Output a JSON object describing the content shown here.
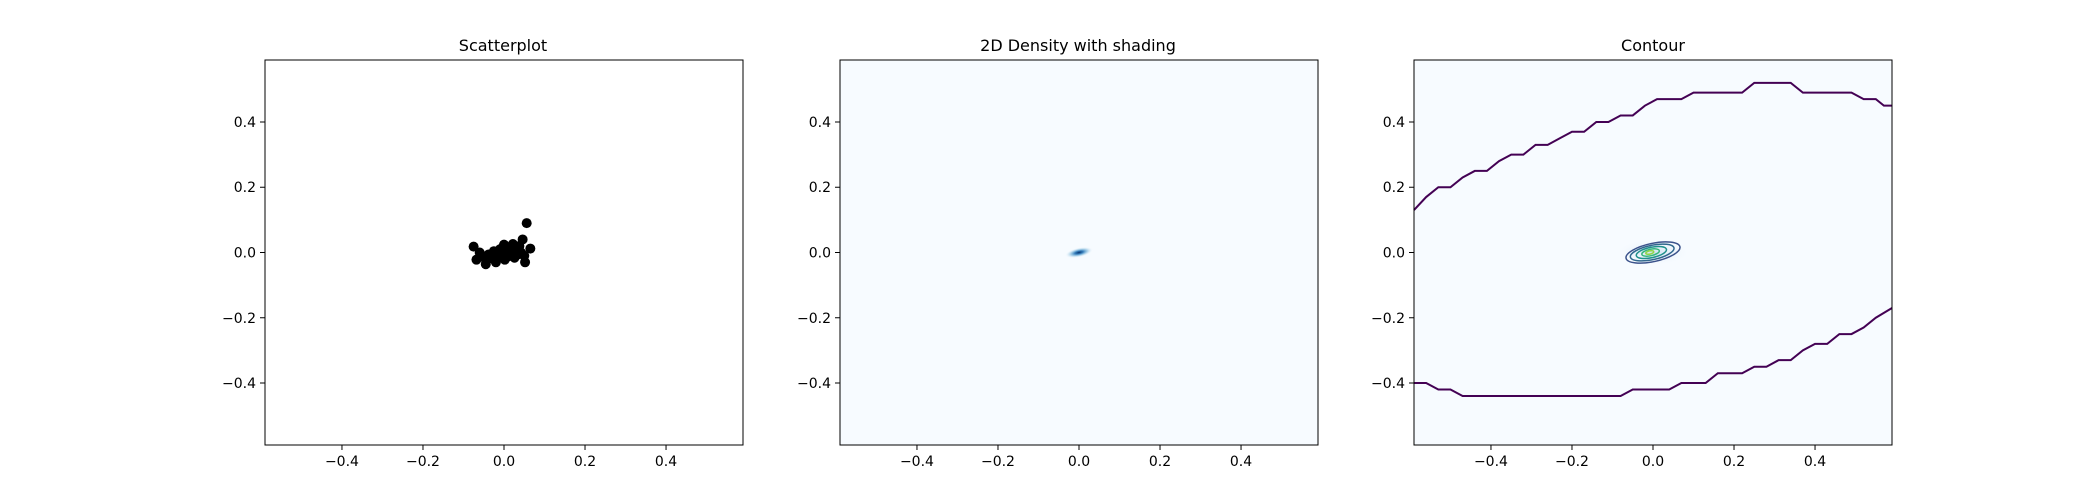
{
  "chart_data": [
    {
      "type": "scatter",
      "title": "Scatterplot",
      "xlabel": "",
      "ylabel": "",
      "xlim": [
        -0.59,
        0.59
      ],
      "ylim": [
        -0.59,
        0.59
      ],
      "xticks": [
        -0.4,
        -0.2,
        0.0,
        0.2,
        0.4
      ],
      "yticks": [
        -0.4,
        -0.2,
        0.0,
        0.2,
        0.4
      ],
      "tick_labels_x": [
        "−0.4",
        "−0.2",
        "0.0",
        "0.2",
        "0.4"
      ],
      "tick_labels_y": [
        "0.4",
        "0.2",
        "0.0",
        "−0.2",
        "−0.4"
      ],
      "grid": false,
      "marker_color": "#000000",
      "points": [
        {
          "x": -0.075,
          "y": 0.018
        },
        {
          "x": -0.068,
          "y": -0.022
        },
        {
          "x": -0.052,
          "y": -0.014
        },
        {
          "x": -0.045,
          "y": -0.036
        },
        {
          "x": -0.038,
          "y": -0.006
        },
        {
          "x": -0.03,
          "y": -0.018
        },
        {
          "x": -0.025,
          "y": 0.004
        },
        {
          "x": -0.02,
          "y": -0.03
        },
        {
          "x": -0.015,
          "y": -0.01
        },
        {
          "x": -0.01,
          "y": 0.01
        },
        {
          "x": -0.005,
          "y": -0.004
        },
        {
          "x": -0.002,
          "y": 0.018
        },
        {
          "x": 0.002,
          "y": -0.022
        },
        {
          "x": 0.006,
          "y": 0.002
        },
        {
          "x": 0.01,
          "y": -0.012
        },
        {
          "x": 0.014,
          "y": 0.012
        },
        {
          "x": 0.018,
          "y": -0.004
        },
        {
          "x": 0.022,
          "y": 0.026
        },
        {
          "x": 0.026,
          "y": -0.016
        },
        {
          "x": 0.03,
          "y": 0.006
        },
        {
          "x": 0.034,
          "y": -0.006
        },
        {
          "x": 0.038,
          "y": 0.02
        },
        {
          "x": 0.042,
          "y": 0.0
        },
        {
          "x": 0.046,
          "y": 0.04
        },
        {
          "x": 0.05,
          "y": -0.01
        },
        {
          "x": 0.052,
          "y": -0.03
        },
        {
          "x": 0.056,
          "y": 0.09
        },
        {
          "x": 0.065,
          "y": 0.012
        },
        {
          "x": -0.06,
          "y": 0.0
        },
        {
          "x": 0.0,
          "y": 0.024
        }
      ]
    },
    {
      "type": "heatmap",
      "title": "2D Density with shading",
      "xlabel": "",
      "ylabel": "",
      "xlim": [
        -0.59,
        0.59
      ],
      "ylim": [
        -0.59,
        0.59
      ],
      "xticks": [
        -0.4,
        -0.2,
        0.0,
        0.2,
        0.4
      ],
      "yticks": [
        -0.4,
        -0.2,
        0.0,
        0.2,
        0.4
      ],
      "tick_labels_x": [
        "−0.4",
        "−0.2",
        "0.0",
        "0.2",
        "0.4"
      ],
      "tick_labels_y": [
        "0.4",
        "0.2",
        "0.0",
        "−0.2",
        "−0.4"
      ],
      "grid": false,
      "colormap": "Blues",
      "background_color": "#f7fbff",
      "peak_color": "#08306b",
      "density_center": {
        "x": 0.0,
        "y": 0.0
      },
      "density_spread": {
        "x": 0.035,
        "y": 0.015
      }
    },
    {
      "type": "contour",
      "title": "Contour",
      "xlabel": "",
      "ylabel": "",
      "xlim": [
        -0.59,
        0.59
      ],
      "ylim": [
        -0.59,
        0.59
      ],
      "xticks": [
        -0.4,
        -0.2,
        0.0,
        0.2,
        0.4
      ],
      "yticks": [
        -0.4,
        -0.2,
        0.0,
        0.2,
        0.4
      ],
      "tick_labels_x": [
        "−0.4",
        "−0.2",
        "0.0",
        "0.2",
        "0.4"
      ],
      "tick_labels_y": [
        "0.4",
        "0.2",
        "0.0",
        "−0.2",
        "−0.4"
      ],
      "grid": false,
      "colormap": "viridis",
      "background_color": "#f7fbff",
      "outer_contour_color": "#440154",
      "outer_contour_upper": [
        [
          -0.59,
          0.13
        ],
        [
          -0.56,
          0.17
        ],
        [
          -0.53,
          0.2
        ],
        [
          -0.5,
          0.2
        ],
        [
          -0.47,
          0.23
        ],
        [
          -0.44,
          0.25
        ],
        [
          -0.41,
          0.25
        ],
        [
          -0.38,
          0.28
        ],
        [
          -0.35,
          0.3
        ],
        [
          -0.32,
          0.3
        ],
        [
          -0.29,
          0.33
        ],
        [
          -0.26,
          0.33
        ],
        [
          -0.23,
          0.35
        ],
        [
          -0.2,
          0.37
        ],
        [
          -0.17,
          0.37
        ],
        [
          -0.14,
          0.4
        ],
        [
          -0.11,
          0.4
        ],
        [
          -0.08,
          0.42
        ],
        [
          -0.05,
          0.42
        ],
        [
          -0.02,
          0.45
        ],
        [
          0.01,
          0.47
        ],
        [
          0.04,
          0.47
        ],
        [
          0.07,
          0.47
        ],
        [
          0.1,
          0.49
        ],
        [
          0.13,
          0.49
        ],
        [
          0.16,
          0.49
        ],
        [
          0.19,
          0.49
        ],
        [
          0.22,
          0.49
        ],
        [
          0.25,
          0.52
        ],
        [
          0.28,
          0.52
        ],
        [
          0.31,
          0.52
        ],
        [
          0.34,
          0.52
        ],
        [
          0.37,
          0.49
        ],
        [
          0.4,
          0.49
        ],
        [
          0.43,
          0.49
        ],
        [
          0.46,
          0.49
        ],
        [
          0.49,
          0.49
        ],
        [
          0.52,
          0.47
        ],
        [
          0.55,
          0.47
        ],
        [
          0.57,
          0.45
        ],
        [
          0.59,
          0.45
        ]
      ],
      "outer_contour_lower": [
        [
          -0.59,
          -0.4
        ],
        [
          -0.56,
          -0.4
        ],
        [
          -0.53,
          -0.42
        ],
        [
          -0.5,
          -0.42
        ],
        [
          -0.47,
          -0.44
        ],
        [
          -0.44,
          -0.44
        ],
        [
          -0.08,
          -0.44
        ],
        [
          -0.05,
          -0.42
        ],
        [
          -0.02,
          -0.42
        ],
        [
          0.01,
          -0.42
        ],
        [
          0.04,
          -0.42
        ],
        [
          0.07,
          -0.4
        ],
        [
          0.1,
          -0.4
        ],
        [
          0.13,
          -0.4
        ],
        [
          0.16,
          -0.37
        ],
        [
          0.19,
          -0.37
        ],
        [
          0.22,
          -0.37
        ],
        [
          0.25,
          -0.35
        ],
        [
          0.28,
          -0.35
        ],
        [
          0.31,
          -0.33
        ],
        [
          0.34,
          -0.33
        ],
        [
          0.37,
          -0.3
        ],
        [
          0.4,
          -0.28
        ],
        [
          0.43,
          -0.28
        ],
        [
          0.46,
          -0.25
        ],
        [
          0.49,
          -0.25
        ],
        [
          0.52,
          -0.23
        ],
        [
          0.55,
          -0.2
        ],
        [
          0.59,
          -0.17
        ]
      ],
      "inner_levels": [
        {
          "color": "#3b528b",
          "rx": 0.068,
          "ry": 0.028,
          "cx": 0.0,
          "cy": 0.0
        },
        {
          "color": "#31688e",
          "rx": 0.055,
          "ry": 0.022,
          "cx": -0.002,
          "cy": 0.0
        },
        {
          "color": "#21918c",
          "rx": 0.038,
          "ry": 0.016,
          "cx": -0.004,
          "cy": 0.0
        },
        {
          "color": "#35b779",
          "rx": 0.022,
          "ry": 0.01,
          "cx": -0.006,
          "cy": 0.0
        },
        {
          "color": "#90d743",
          "rx": 0.01,
          "ry": 0.005,
          "cx": -0.008,
          "cy": 0.0
        }
      ]
    }
  ]
}
